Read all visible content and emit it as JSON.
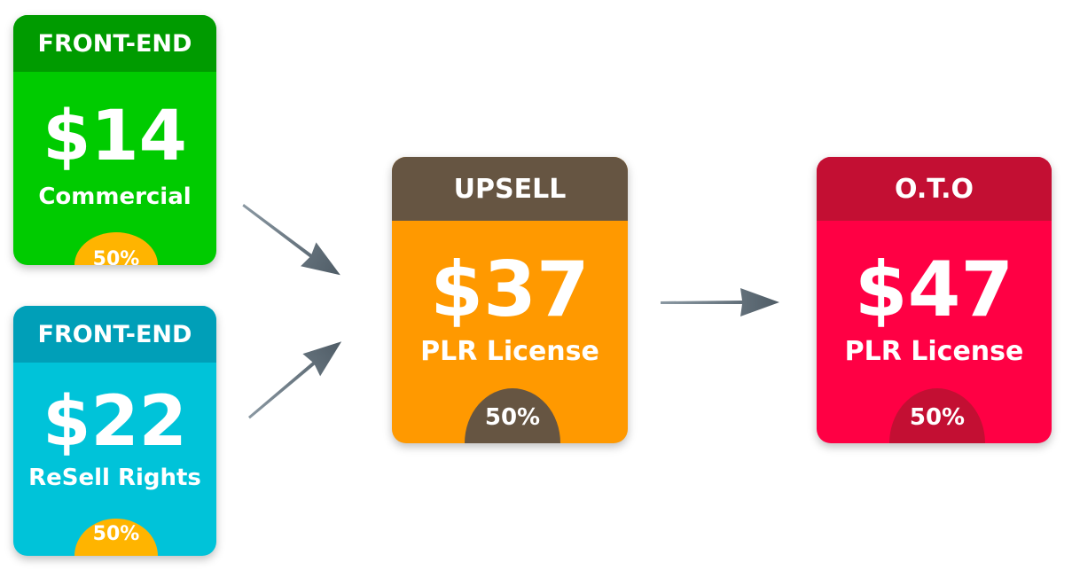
{
  "colors": {
    "fe1_header": "#009b00",
    "fe1_body": "#00cb00",
    "fe2_header": "#009fb8",
    "fe2_body": "#00c3d9",
    "upsell_header": "#665542",
    "upsell_body": "#ff9900",
    "oto_header": "#c30f33",
    "oto_body": "#ff0044",
    "badge_yellow": "#ffb400",
    "badge_brown": "#665542",
    "badge_crimson": "#c30f33",
    "arrow": "#5f6e78"
  },
  "cards": {
    "front_end_1": {
      "header": "FRONT-END",
      "price": "$14",
      "description": "Commercial",
      "badge": "50%"
    },
    "front_end_2": {
      "header": "FRONT-END",
      "price": "$22",
      "description": "ReSell Rights",
      "badge": "50%"
    },
    "upsell": {
      "header": "UPSELL",
      "price": "$37",
      "description": "PLR License",
      "badge": "50%"
    },
    "oto": {
      "header": "O.T.O",
      "price": "$47",
      "description": "PLR License",
      "badge": "50%"
    }
  },
  "arrows": {
    "icon": "arrow-icon",
    "edges": [
      {
        "from": "front_end_1",
        "to": "upsell"
      },
      {
        "from": "front_end_2",
        "to": "upsell"
      },
      {
        "from": "upsell",
        "to": "oto"
      }
    ]
  }
}
